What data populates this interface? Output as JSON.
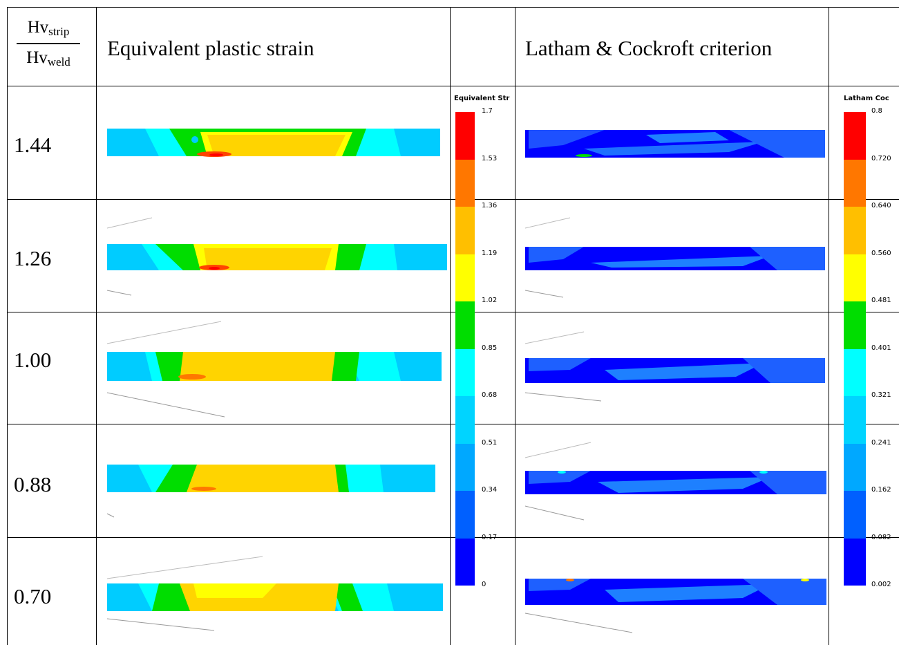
{
  "header": {
    "ratio_num_base": "Hv",
    "ratio_num_sub": "strip",
    "ratio_den_base": "Hv",
    "ratio_den_sub": "weld",
    "col_strain": "Equivalent plastic strain",
    "col_latham": "Latham & Cockroft criterion"
  },
  "rows": [
    {
      "ratio": "1.44"
    },
    {
      "ratio": "1.26"
    },
    {
      "ratio": "1.00"
    },
    {
      "ratio": "0.88"
    },
    {
      "ratio": "0.70"
    }
  ],
  "legend_strain": {
    "title": "Equivalent Str",
    "ticks": [
      "1.7",
      "1.53",
      "1.36",
      "1.19",
      "1.02",
      "0.85",
      "0.68",
      "0.51",
      "0.34",
      "0.17",
      "0"
    ],
    "colors": [
      "#ff0000",
      "#ff7700",
      "#ffbf00",
      "#ffff00",
      "#00dd00",
      "#00ffff",
      "#00d4ff",
      "#00a8ff",
      "#0060ff",
      "#0000ff"
    ]
  },
  "legend_latham": {
    "title": "Latham Coc",
    "ticks": [
      "0.8",
      "0.720",
      "0.640",
      "0.560",
      "0.481",
      "0.401",
      "0.321",
      "0.241",
      "0.162",
      "0.082",
      "0.002"
    ],
    "colors": [
      "#ff0000",
      "#ff7700",
      "#ffbf00",
      "#ffff00",
      "#00dd00",
      "#00ffff",
      "#00d4ff",
      "#00a8ff",
      "#0060ff",
      "#0000ff"
    ]
  }
}
